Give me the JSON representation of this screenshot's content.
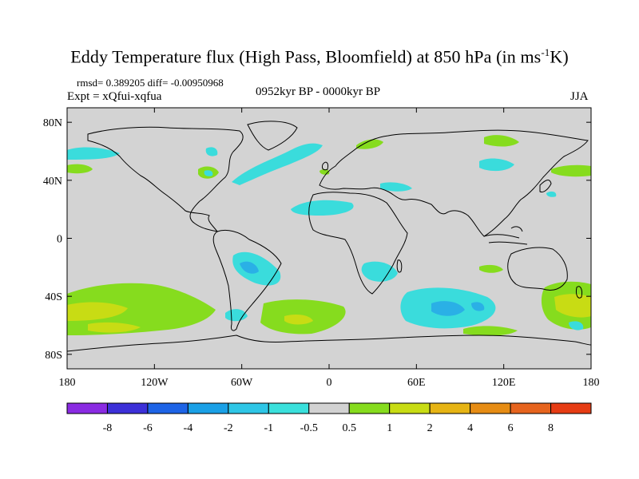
{
  "title_main": "Eddy Temperature flux (High Pass, Bloomfield) at 850 hPa (in ms",
  "title_sup": "-1",
  "title_tail": "K)",
  "stats": "rmsd= 0.389205  diff= -0.00950968",
  "experiment": "Expt = xQfui-xqfua",
  "period": "0952kyr BP - 0000kyr BP",
  "season": "JJA",
  "axes": {
    "lat_labels": [
      "80N",
      "40N",
      "0",
      "40S",
      "80S"
    ],
    "lon_labels": [
      "180",
      "120W",
      "60W",
      "0",
      "60E",
      "120E",
      "180"
    ]
  },
  "colorbar": {
    "labels": [
      "-8",
      "-6",
      "-4",
      "-2",
      "-1",
      "-0.5",
      "0.5",
      "1",
      "2",
      "4",
      "6",
      "8"
    ],
    "colors": [
      "#8a2be2",
      "#3c30d8",
      "#1e64e6",
      "#1aa0e6",
      "#2ec6e6",
      "#3ae0dc",
      "#d2d2d2",
      "#86dc1e",
      "#c8dc14",
      "#e6b414",
      "#e68c14",
      "#e6641e",
      "#e63c14"
    ]
  },
  "colors": {
    "ocean_neutral": "#d3d3d3",
    "cyan": "#3adcdc",
    "blue": "#2ab0e6",
    "green": "#86dc1e",
    "yellowgreen": "#c8dc14",
    "coast": "#000000"
  }
}
